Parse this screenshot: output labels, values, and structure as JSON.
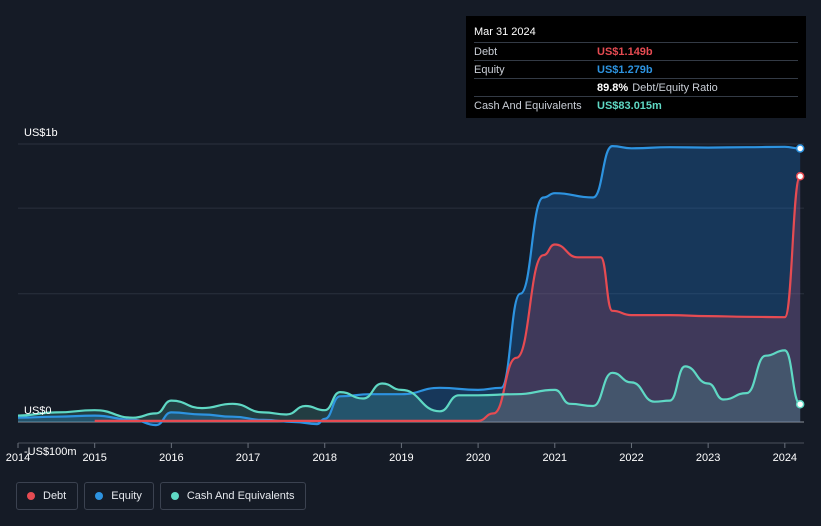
{
  "tooltip": {
    "date": "Mar 31 2024",
    "rows": [
      {
        "label": "Debt",
        "value": "US$1.149b",
        "color": "#e64b52"
      },
      {
        "label": "Equity",
        "value": "US$1.279b",
        "color": "#2d93e0"
      },
      {
        "label": "",
        "value": "89.8%",
        "sub": "Debt/Equity Ratio",
        "color": "#ffffff"
      },
      {
        "label": "Cash And Equivalents",
        "value": "US$83.015m",
        "color": "#5fd8c4"
      }
    ]
  },
  "legend": [
    {
      "label": "Debt",
      "color": "#e64b52"
    },
    {
      "label": "Equity",
      "color": "#2d93e0"
    },
    {
      "label": "Cash And Equivalents",
      "color": "#5fd8c4"
    }
  ],
  "chart_data": {
    "type": "area",
    "title": "",
    "xlabel": "",
    "ylabel": "",
    "xlim": [
      2014.0,
      2024.25
    ],
    "ylim": [
      -100,
      1300
    ],
    "y_axis_labels": [
      {
        "text": "US$1b",
        "value": 1300
      },
      {
        "text": "US$0",
        "value": 0
      },
      {
        "text": "-US$100m",
        "value": -100
      }
    ],
    "x_ticks": [
      "2014",
      "2015",
      "2016",
      "2017",
      "2018",
      "2019",
      "2020",
      "2021",
      "2022",
      "2023",
      "2024"
    ],
    "series": [
      {
        "name": "Equity",
        "color": "#2d93e0",
        "points": [
          [
            2014.0,
            20
          ],
          [
            2014.5,
            25
          ],
          [
            2015.0,
            30
          ],
          [
            2015.5,
            10
          ],
          [
            2015.8,
            -15
          ],
          [
            2016.0,
            45
          ],
          [
            2016.4,
            35
          ],
          [
            2016.8,
            25
          ],
          [
            2017.2,
            10
          ],
          [
            2017.6,
            0
          ],
          [
            2017.9,
            -10
          ],
          [
            2018.0,
            15
          ],
          [
            2018.2,
            120
          ],
          [
            2018.6,
            130
          ],
          [
            2019.0,
            130
          ],
          [
            2019.5,
            160
          ],
          [
            2020.0,
            150
          ],
          [
            2020.3,
            160
          ],
          [
            2020.55,
            600
          ],
          [
            2020.85,
            1050
          ],
          [
            2021.0,
            1070
          ],
          [
            2021.5,
            1050
          ],
          [
            2021.75,
            1290
          ],
          [
            2022.0,
            1280
          ],
          [
            2022.5,
            1285
          ],
          [
            2023.0,
            1283
          ],
          [
            2023.5,
            1285
          ],
          [
            2024.0,
            1287
          ],
          [
            2024.2,
            1279
          ]
        ]
      },
      {
        "name": "Debt",
        "color": "#e64b52",
        "points": [
          [
            2015.0,
            5
          ],
          [
            2016.0,
            5
          ],
          [
            2017.0,
            5
          ],
          [
            2018.0,
            5
          ],
          [
            2019.0,
            5
          ],
          [
            2020.0,
            5
          ],
          [
            2020.2,
            40
          ],
          [
            2020.5,
            300
          ],
          [
            2020.85,
            780
          ],
          [
            2021.0,
            830
          ],
          [
            2021.3,
            770
          ],
          [
            2021.6,
            770
          ],
          [
            2021.75,
            520
          ],
          [
            2022.0,
            500
          ],
          [
            2022.5,
            500
          ],
          [
            2023.0,
            495
          ],
          [
            2023.5,
            492
          ],
          [
            2024.0,
            490
          ],
          [
            2024.2,
            1149
          ]
        ]
      },
      {
        "name": "Cash And Equivalents",
        "color": "#5fd8c4",
        "points": [
          [
            2014.0,
            30
          ],
          [
            2014.5,
            45
          ],
          [
            2015.0,
            55
          ],
          [
            2015.5,
            20
          ],
          [
            2015.8,
            40
          ],
          [
            2016.0,
            100
          ],
          [
            2016.4,
            65
          ],
          [
            2016.8,
            85
          ],
          [
            2017.2,
            45
          ],
          [
            2017.5,
            35
          ],
          [
            2017.75,
            75
          ],
          [
            2018.0,
            55
          ],
          [
            2018.2,
            140
          ],
          [
            2018.5,
            110
          ],
          [
            2018.75,
            180
          ],
          [
            2019.0,
            150
          ],
          [
            2019.5,
            50
          ],
          [
            2019.75,
            125
          ],
          [
            2020.0,
            125
          ],
          [
            2020.5,
            130
          ],
          [
            2021.0,
            150
          ],
          [
            2021.2,
            85
          ],
          [
            2021.5,
            75
          ],
          [
            2021.75,
            230
          ],
          [
            2022.0,
            185
          ],
          [
            2022.3,
            95
          ],
          [
            2022.5,
            100
          ],
          [
            2022.7,
            260
          ],
          [
            2023.0,
            180
          ],
          [
            2023.2,
            105
          ],
          [
            2023.5,
            135
          ],
          [
            2023.75,
            310
          ],
          [
            2024.0,
            335
          ],
          [
            2024.2,
            83
          ]
        ]
      }
    ]
  }
}
